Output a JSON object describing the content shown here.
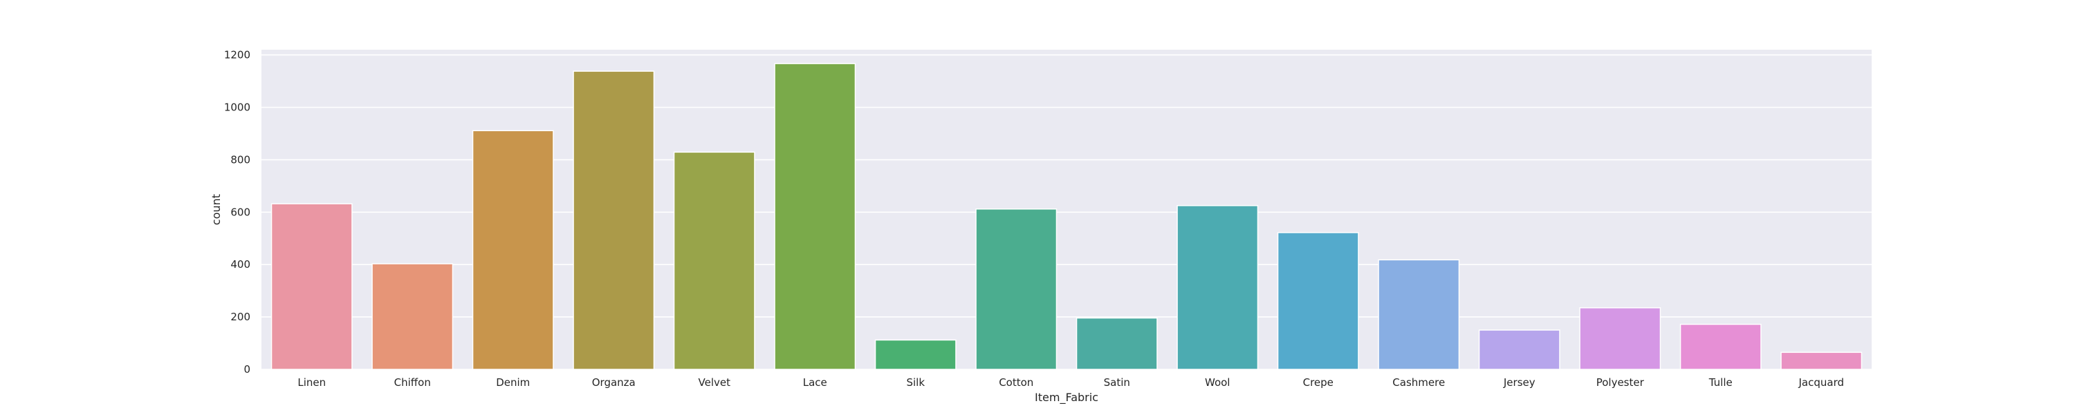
{
  "chart_data": {
    "type": "bar",
    "xlabel": "Item_Fabric",
    "ylabel": "count",
    "ylim": [
      0,
      1220
    ],
    "yticks": [
      0,
      200,
      400,
      600,
      800,
      1000,
      1200
    ],
    "grid": true,
    "background": "#eaeaf2",
    "categories": [
      "Linen",
      "Chiffon",
      "Denim",
      "Organza",
      "Velvet",
      "Lace",
      "Silk",
      "Cotton",
      "Satin",
      "Wool",
      "Crepe",
      "Cashmere",
      "Jersey",
      "Polyester",
      "Tulle",
      "Jacquard"
    ],
    "values": [
      632,
      403,
      911,
      1138,
      829,
      1167,
      112,
      612,
      196,
      625,
      522,
      418,
      150,
      235,
      172,
      65
    ],
    "colors": [
      "#ea96a3",
      "#e69577",
      "#c8954c",
      "#ab9a49",
      "#98a44a",
      "#7aaa4a",
      "#4ab071",
      "#4bad8f",
      "#4caba1",
      "#4cabb1",
      "#54aacc",
      "#88aee3",
      "#b6a5ec",
      "#d597e5",
      "#e68fd5",
      "#e991c2"
    ]
  }
}
